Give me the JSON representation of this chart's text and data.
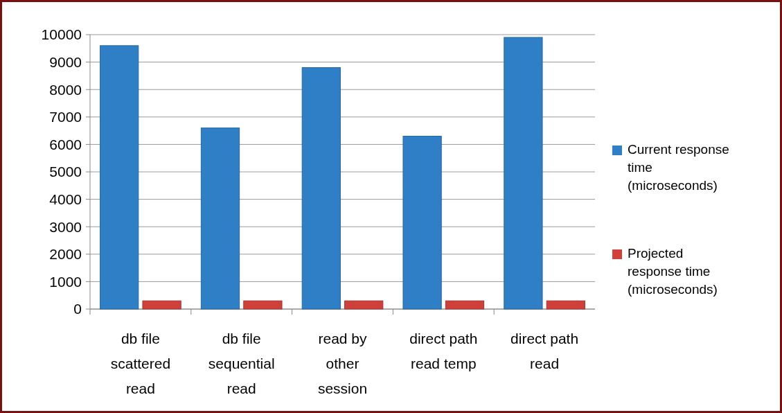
{
  "chart_data": {
    "type": "bar",
    "categories": [
      "db file scattered read",
      "db file sequential read",
      "read by other session",
      "direct path read temp",
      "direct path read"
    ],
    "series": [
      {
        "name": "Current response time (microseconds)",
        "color": "#2f7fc6",
        "values": [
          9600,
          6600,
          8800,
          6300,
          9900
        ]
      },
      {
        "name": "Projected response time (microseconds)",
        "color": "#d0403b",
        "values": [
          300,
          300,
          300,
          300,
          300
        ]
      }
    ],
    "ylim": [
      0,
      10000
    ],
    "yticks": [
      0,
      1000,
      2000,
      3000,
      4000,
      5000,
      6000,
      7000,
      8000,
      9000,
      10000
    ],
    "grid": "y",
    "legend": "right"
  }
}
